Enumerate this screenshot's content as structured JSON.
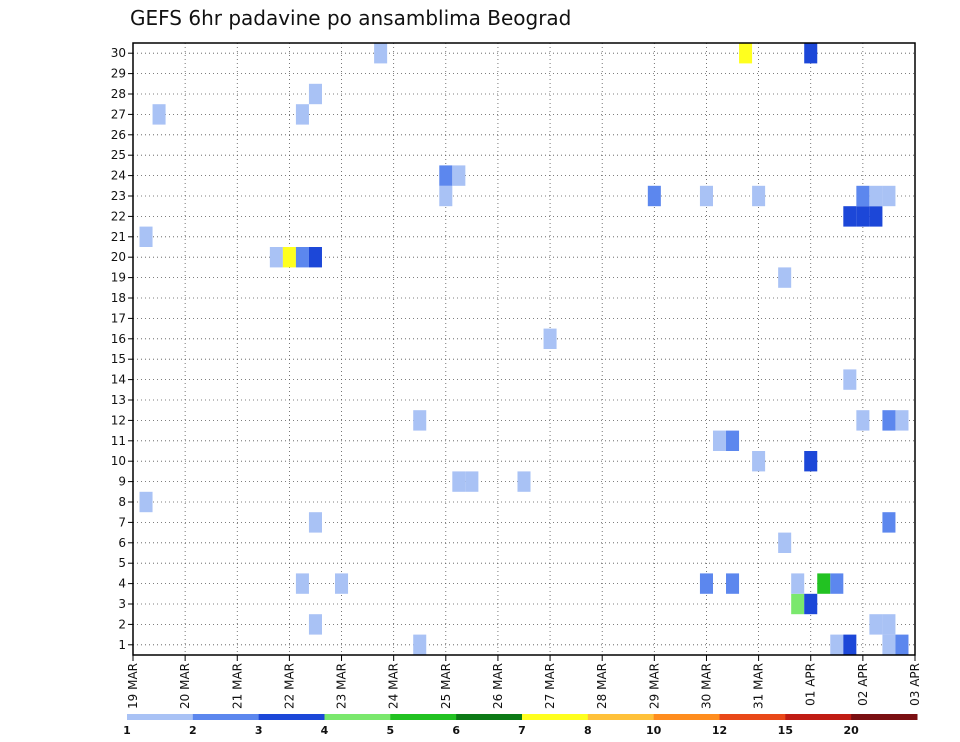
{
  "chart_data": {
    "type": "heatmap",
    "title": "GEFS 6hr padavine po ansamblima Beograd",
    "x_tick_labels": [
      "19 MAR",
      "20 MAR",
      "21 MAR",
      "22 MAR",
      "23 MAR",
      "24 MAR",
      "25 MAR",
      "26 MAR",
      "27 MAR",
      "28 MAR",
      "29 MAR",
      "30 MAR",
      "31 MAR",
      "01 APR",
      "02 APR",
      "03 APR"
    ],
    "y_tick_labels": [
      "1",
      "2",
      "3",
      "4",
      "5",
      "6",
      "7",
      "8",
      "9",
      "10",
      "11",
      "12",
      "13",
      "14",
      "15",
      "16",
      "17",
      "18",
      "19",
      "20",
      "21",
      "22",
      "23",
      "24",
      "25",
      "26",
      "27",
      "28",
      "29",
      "30"
    ],
    "xlim": [
      0,
      60
    ],
    "ylim": [
      0.5,
      30.5
    ],
    "grid": true,
    "colorbar": {
      "labels": [
        "1",
        "2",
        "3",
        "4",
        "5",
        "6",
        "7",
        "8",
        "10",
        "12",
        "15",
        "20"
      ],
      "colors": [
        "#a9c2f5",
        "#5c87ee",
        "#1c47d8",
        "#7ae86d",
        "#22c222",
        "#0d7a16",
        "#ffff1e",
        "#ffc13a",
        "#ff8d1e",
        "#e94818",
        "#c01c14",
        "#7a0f12"
      ]
    },
    "cells": [
      {
        "x": 1,
        "y": 8,
        "c": 0
      },
      {
        "x": 1,
        "y": 21,
        "c": 0
      },
      {
        "x": 2,
        "y": 27,
        "c": 0
      },
      {
        "x": 11,
        "y": 20,
        "c": 0
      },
      {
        "x": 12,
        "y": 20,
        "c": 6
      },
      {
        "x": 13,
        "y": 20,
        "c": 1
      },
      {
        "x": 14,
        "y": 20,
        "c": 2
      },
      {
        "x": 13,
        "y": 4,
        "c": 0
      },
      {
        "x": 13,
        "y": 27,
        "c": 0
      },
      {
        "x": 14,
        "y": 2,
        "c": 0
      },
      {
        "x": 14,
        "y": 7,
        "c": 0
      },
      {
        "x": 14,
        "y": 28,
        "c": 0
      },
      {
        "x": 16,
        "y": 4,
        "c": 0
      },
      {
        "x": 19,
        "y": 30,
        "c": 0
      },
      {
        "x": 22,
        "y": 1,
        "c": 0
      },
      {
        "x": 22,
        "y": 12,
        "c": 0
      },
      {
        "x": 24,
        "y": 23,
        "c": 0
      },
      {
        "x": 24,
        "y": 24,
        "c": 1
      },
      {
        "x": 25,
        "y": 24,
        "c": 0
      },
      {
        "x": 25,
        "y": 9,
        "c": 0
      },
      {
        "x": 26,
        "y": 9,
        "c": 0
      },
      {
        "x": 30,
        "y": 9,
        "c": 0
      },
      {
        "x": 32,
        "y": 16,
        "c": 0
      },
      {
        "x": 40,
        "y": 23,
        "c": 1
      },
      {
        "x": 44,
        "y": 4,
        "c": 1
      },
      {
        "x": 44,
        "y": 23,
        "c": 0
      },
      {
        "x": 45,
        "y": 11,
        "c": 0
      },
      {
        "x": 46,
        "y": 11,
        "c": 1
      },
      {
        "x": 46,
        "y": 4,
        "c": 1
      },
      {
        "x": 48,
        "y": 10,
        "c": 0
      },
      {
        "x": 48,
        "y": 23,
        "c": 0
      },
      {
        "x": 47,
        "y": 30,
        "c": 6
      },
      {
        "x": 50,
        "y": 6,
        "c": 0
      },
      {
        "x": 50,
        "y": 19,
        "c": 0
      },
      {
        "x": 51,
        "y": 3,
        "c": 3
      },
      {
        "x": 51,
        "y": 4,
        "c": 0
      },
      {
        "x": 52,
        "y": 3,
        "c": 2
      },
      {
        "x": 52,
        "y": 10,
        "c": 2
      },
      {
        "x": 52,
        "y": 30,
        "c": 2
      },
      {
        "x": 53,
        "y": 4,
        "c": 4
      },
      {
        "x": 54,
        "y": 4,
        "c": 1
      },
      {
        "x": 54,
        "y": 1,
        "c": 0
      },
      {
        "x": 55,
        "y": 1,
        "c": 2
      },
      {
        "x": 55,
        "y": 14,
        "c": 0
      },
      {
        "x": 55,
        "y": 22,
        "c": 2
      },
      {
        "x": 56,
        "y": 12,
        "c": 0
      },
      {
        "x": 56,
        "y": 22,
        "c": 2
      },
      {
        "x": 56,
        "y": 23,
        "c": 1
      },
      {
        "x": 57,
        "y": 2,
        "c": 0
      },
      {
        "x": 57,
        "y": 22,
        "c": 2
      },
      {
        "x": 57,
        "y": 23,
        "c": 0
      },
      {
        "x": 58,
        "y": 1,
        "c": 0
      },
      {
        "x": 58,
        "y": 2,
        "c": 0
      },
      {
        "x": 58,
        "y": 7,
        "c": 1
      },
      {
        "x": 58,
        "y": 12,
        "c": 1
      },
      {
        "x": 58,
        "y": 23,
        "c": 0
      },
      {
        "x": 59,
        "y": 1,
        "c": 1
      },
      {
        "x": 59,
        "y": 12,
        "c": 0
      }
    ]
  }
}
